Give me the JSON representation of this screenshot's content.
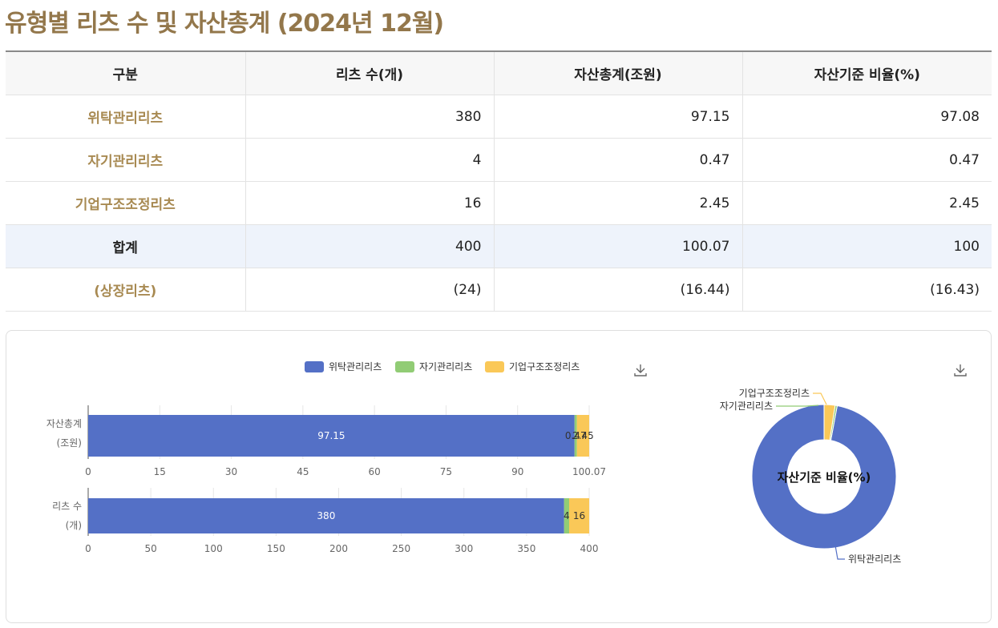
{
  "title": "유형별 리츠 수 및 자산총계 (2024년 12월)",
  "table": {
    "headers": [
      "구분",
      "리츠 수(개)",
      "자산총계(조원)",
      "자산기준 비율(%)"
    ],
    "rows": [
      {
        "label": "위탁관리리츠",
        "count": "380",
        "assets": "97.15",
        "ratio": "97.08"
      },
      {
        "label": "자기관리리츠",
        "count": "4",
        "assets": "0.47",
        "ratio": "0.47"
      },
      {
        "label": "기업구조조정리츠",
        "count": "16",
        "assets": "2.45",
        "ratio": "2.45"
      },
      {
        "label": "합계",
        "count": "400",
        "assets": "100.07",
        "ratio": "100"
      },
      {
        "label": "(상장리츠)",
        "count": "(24)",
        "assets": "(16.44)",
        "ratio": "(16.43)"
      }
    ]
  },
  "colors": {
    "위탁관리리츠": "#5470c6",
    "자기관리리츠": "#91cc75",
    "기업구조조정리츠": "#fac858"
  },
  "icons": {
    "download": "download-icon"
  },
  "chart_data": [
    {
      "type": "bar",
      "orientation": "horizontal",
      "stacked": true,
      "legend": [
        "위탁관리리츠",
        "자기관리리츠",
        "기업구조조정리츠"
      ],
      "legend_position": "top-center",
      "grid": true,
      "charts": [
        {
          "category_label": [
            "자산총계",
            "(조원)"
          ],
          "xlim": [
            0,
            100.07
          ],
          "ticks": [
            "0",
            "15",
            "30",
            "45",
            "60",
            "75",
            "90",
            "100.07"
          ],
          "series": [
            {
              "name": "위탁관리리츠",
              "value": 97.15,
              "label": "97.15"
            },
            {
              "name": "자기관리리츠",
              "value": 0.47,
              "label": "0.47"
            },
            {
              "name": "기업구조조정리츠",
              "value": 2.45,
              "label": "2.45"
            }
          ]
        },
        {
          "category_label": [
            "리츠 수",
            "(개)"
          ],
          "xlim": [
            0,
            400
          ],
          "ticks": [
            "0",
            "50",
            "100",
            "150",
            "200",
            "250",
            "300",
            "350",
            "400"
          ],
          "series": [
            {
              "name": "위탁관리리츠",
              "value": 380,
              "label": "380"
            },
            {
              "name": "자기관리리츠",
              "value": 4,
              "label": "4"
            },
            {
              "name": "기업구조조정리츠",
              "value": 16,
              "label": "16"
            }
          ]
        }
      ]
    },
    {
      "type": "pie",
      "donut": true,
      "center_label": "자산기준 비율(%)",
      "slices": [
        {
          "name": "위탁관리리츠",
          "value": 97.08
        },
        {
          "name": "자기관리리츠",
          "value": 0.47
        },
        {
          "name": "기업구조조정리츠",
          "value": 2.45
        }
      ]
    }
  ]
}
